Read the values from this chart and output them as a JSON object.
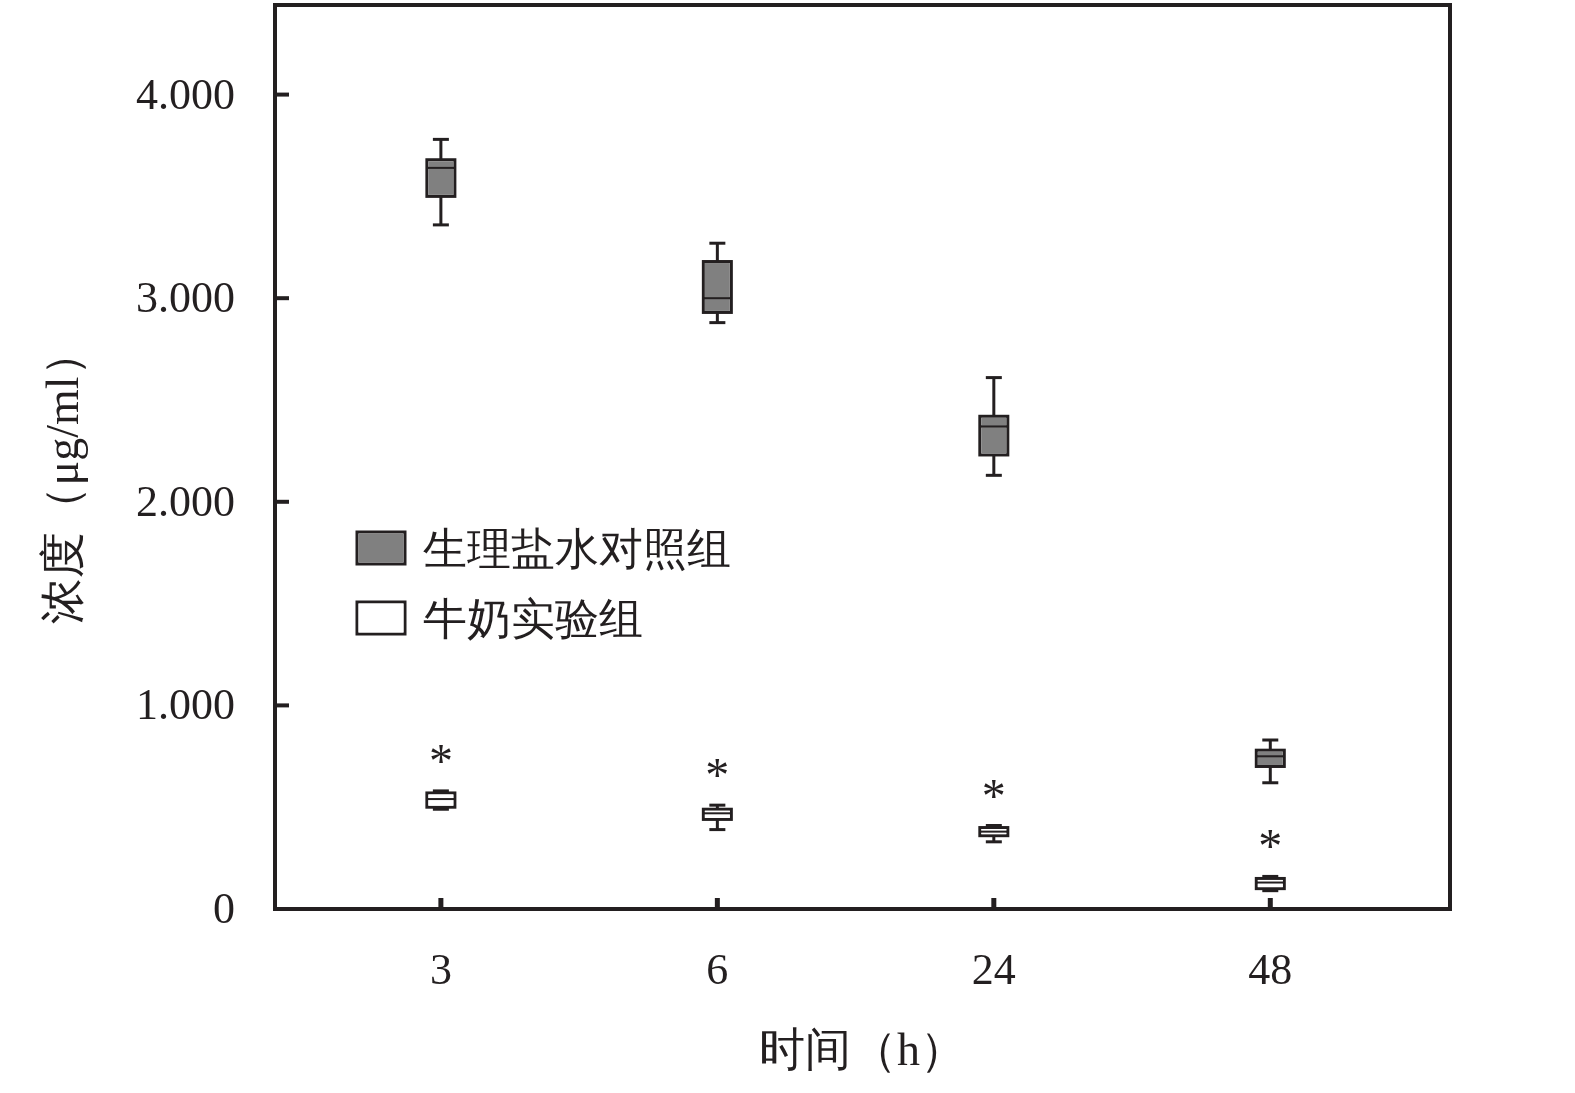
{
  "chart_data": {
    "type": "box",
    "xlabel": "时间（h）",
    "ylabel": "浓度（μg/ml）",
    "categories": [
      "3",
      "6",
      "24",
      "48"
    ],
    "ylim": [
      0,
      4440
    ],
    "yticks": [
      0,
      {
        "value": 1000,
        "label": "1.000"
      },
      {
        "value": 2000,
        "label": "2.000"
      },
      {
        "value": 3000,
        "label": "3.000"
      },
      {
        "value": 4000,
        "label": "4.000"
      }
    ],
    "grid": false,
    "legend": "left",
    "series": [
      {
        "name": "生理盐水对照组",
        "color": "#808080",
        "boxes": [
          {
            "low": 3360,
            "q1": 3500,
            "median": 3640,
            "q3": 3680,
            "high": 3780
          },
          {
            "low": 2880,
            "q1": 2930,
            "median": 3000,
            "q3": 3180,
            "high": 3270
          },
          {
            "low": 2130,
            "q1": 2230,
            "median": 2370,
            "q3": 2420,
            "high": 2610
          },
          {
            "low": 620,
            "q1": 700,
            "median": 750,
            "q3": 780,
            "high": 830
          }
        ]
      },
      {
        "name": "牛奶实验组",
        "color": "#ffffff",
        "boxes": [
          {
            "low": 490,
            "q1": 500,
            "median": 540,
            "q3": 570,
            "high": 580
          },
          {
            "low": 390,
            "q1": 440,
            "median": 470,
            "q3": 490,
            "high": 510
          },
          {
            "low": 330,
            "q1": 360,
            "median": 380,
            "q3": 400,
            "high": 410
          },
          {
            "low": 90,
            "q1": 100,
            "median": 130,
            "q3": 150,
            "high": 160
          }
        ]
      }
    ],
    "annotations": [
      "*",
      "*",
      "*",
      "*"
    ]
  }
}
